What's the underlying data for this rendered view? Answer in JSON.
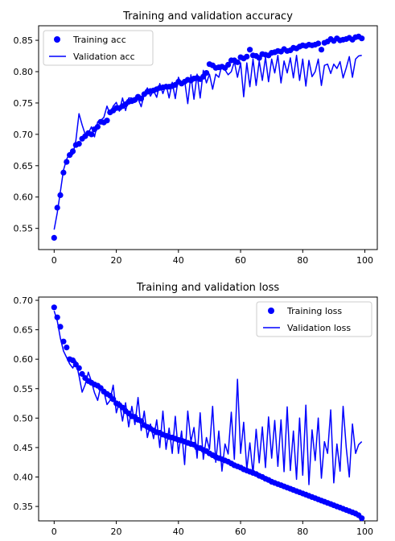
{
  "chart_data": [
    {
      "type": "line",
      "title": "Training and validation accuracy",
      "xlabel": "",
      "ylabel": "",
      "xlim": [
        -5,
        104
      ],
      "ylim": [
        0.5162,
        0.8732
      ],
      "xticks": [
        0,
        20,
        40,
        60,
        80,
        100
      ],
      "yticks": [
        0.55,
        0.6,
        0.65,
        0.7,
        0.75,
        0.8,
        0.85
      ],
      "tick_labels_x": [
        "0",
        "20",
        "40",
        "60",
        "80",
        "100"
      ],
      "tick_labels_y": [
        "0.55",
        "0.60",
        "0.65",
        "0.70",
        "0.75",
        "0.80",
        "0.85"
      ],
      "legend_position": "upper-left",
      "grid": false,
      "series": [
        {
          "name": "Training acc",
          "style": "points",
          "color": "#0000ff",
          "x": [
            0,
            1,
            2,
            3,
            4,
            5,
            6,
            7,
            8,
            9,
            10,
            11,
            12,
            13,
            14,
            15,
            16,
            17,
            18,
            19,
            20,
            21,
            22,
            23,
            24,
            25,
            26,
            27,
            28,
            29,
            30,
            31,
            32,
            33,
            34,
            35,
            36,
            37,
            38,
            39,
            40,
            41,
            42,
            43,
            44,
            45,
            46,
            47,
            48,
            49,
            50,
            51,
            52,
            53,
            54,
            55,
            56,
            57,
            58,
            59,
            60,
            61,
            62,
            63,
            64,
            65,
            66,
            67,
            68,
            69,
            70,
            71,
            72,
            73,
            74,
            75,
            76,
            77,
            78,
            79,
            80,
            81,
            82,
            83,
            84,
            85,
            86,
            87,
            88,
            89,
            90,
            91,
            92,
            93,
            94,
            95,
            96,
            97,
            98,
            99
          ],
          "y": [
            0.535,
            0.583,
            0.603,
            0.639,
            0.656,
            0.667,
            0.673,
            0.683,
            0.685,
            0.693,
            0.697,
            0.702,
            0.7,
            0.708,
            0.712,
            0.72,
            0.719,
            0.722,
            0.735,
            0.738,
            0.742,
            0.742,
            0.745,
            0.748,
            0.752,
            0.753,
            0.755,
            0.76,
            0.757,
            0.764,
            0.768,
            0.769,
            0.77,
            0.772,
            0.774,
            0.775,
            0.776,
            0.776,
            0.777,
            0.779,
            0.784,
            0.781,
            0.784,
            0.787,
            0.786,
            0.789,
            0.79,
            0.788,
            0.792,
            0.798,
            0.812,
            0.81,
            0.806,
            0.807,
            0.808,
            0.806,
            0.811,
            0.818,
            0.818,
            0.815,
            0.823,
            0.821,
            0.824,
            0.835,
            0.826,
            0.825,
            0.822,
            0.828,
            0.827,
            0.826,
            0.83,
            0.831,
            0.833,
            0.832,
            0.836,
            0.833,
            0.834,
            0.838,
            0.837,
            0.84,
            0.842,
            0.841,
            0.843,
            0.842,
            0.843,
            0.845,
            0.835,
            0.846,
            0.848,
            0.852,
            0.849,
            0.853,
            0.85,
            0.851,
            0.852,
            0.854,
            0.851,
            0.855,
            0.856,
            0.853
          ]
        },
        {
          "name": "Validation acc",
          "style": "line",
          "color": "#0000ff",
          "x": [
            0,
            1,
            2,
            3,
            4,
            5,
            6,
            7,
            8,
            9,
            10,
            11,
            12,
            13,
            14,
            15,
            16,
            17,
            18,
            19,
            20,
            21,
            22,
            23,
            24,
            25,
            26,
            27,
            28,
            29,
            30,
            31,
            32,
            33,
            34,
            35,
            36,
            37,
            38,
            39,
            40,
            41,
            42,
            43,
            44,
            45,
            46,
            47,
            48,
            49,
            50,
            51,
            52,
            53,
            54,
            55,
            56,
            57,
            58,
            59,
            60,
            61,
            62,
            63,
            64,
            65,
            66,
            67,
            68,
            69,
            70,
            71,
            72,
            73,
            74,
            75,
            76,
            77,
            78,
            79,
            80,
            81,
            82,
            83,
            84,
            85,
            86,
            87,
            88,
            89,
            90,
            91,
            92,
            93,
            94,
            95,
            96,
            97,
            98,
            99
          ],
          "y": [
            0.548,
            0.575,
            0.608,
            0.643,
            0.66,
            0.671,
            0.668,
            0.69,
            0.733,
            0.715,
            0.7,
            0.702,
            0.712,
            0.696,
            0.72,
            0.722,
            0.727,
            0.745,
            0.732,
            0.745,
            0.751,
            0.737,
            0.758,
            0.738,
            0.758,
            0.758,
            0.751,
            0.757,
            0.744,
            0.765,
            0.774,
            0.761,
            0.77,
            0.759,
            0.781,
            0.765,
            0.78,
            0.758,
            0.783,
            0.757,
            0.791,
            0.778,
            0.786,
            0.749,
            0.795,
            0.756,
            0.796,
            0.758,
            0.802,
            0.782,
            0.796,
            0.772,
            0.796,
            0.791,
            0.811,
            0.803,
            0.795,
            0.8,
            0.816,
            0.791,
            0.814,
            0.76,
            0.814,
            0.776,
            0.82,
            0.778,
            0.817,
            0.786,
            0.823,
            0.784,
            0.82,
            0.798,
            0.826,
            0.782,
            0.817,
            0.798,
            0.822,
            0.79,
            0.826,
            0.786,
            0.82,
            0.777,
            0.818,
            0.792,
            0.8,
            0.82,
            0.778,
            0.81,
            0.812,
            0.797,
            0.812,
            0.805,
            0.816,
            0.79,
            0.806,
            0.824,
            0.791,
            0.82,
            0.825,
            0.826
          ]
        }
      ]
    },
    {
      "type": "line",
      "title": "Training and validation loss",
      "xlabel": "",
      "ylabel": "",
      "xlim": [
        -5,
        104
      ],
      "ylim": [
        0.3255,
        0.7055
      ],
      "xticks": [
        0,
        20,
        40,
        60,
        80,
        100
      ],
      "yticks": [
        0.35,
        0.4,
        0.45,
        0.5,
        0.55,
        0.6,
        0.65,
        0.7
      ],
      "tick_labels_x": [
        "0",
        "20",
        "40",
        "60",
        "80",
        "100"
      ],
      "tick_labels_y": [
        "0.35",
        "0.40",
        "0.45",
        "0.50",
        "0.55",
        "0.60",
        "0.65",
        "0.70"
      ],
      "legend_position": "upper-right",
      "grid": false,
      "series": [
        {
          "name": "Training loss",
          "style": "points",
          "color": "#0000ff",
          "x": [
            0,
            1,
            2,
            3,
            4,
            5,
            6,
            7,
            8,
            9,
            10,
            11,
            12,
            13,
            14,
            15,
            16,
            17,
            18,
            19,
            20,
            21,
            22,
            23,
            24,
            25,
            26,
            27,
            28,
            29,
            30,
            31,
            32,
            33,
            34,
            35,
            36,
            37,
            38,
            39,
            40,
            41,
            42,
            43,
            44,
            45,
            46,
            47,
            48,
            49,
            50,
            51,
            52,
            53,
            54,
            55,
            56,
            57,
            58,
            59,
            60,
            61,
            62,
            63,
            64,
            65,
            66,
            67,
            68,
            69,
            70,
            71,
            72,
            73,
            74,
            75,
            76,
            77,
            78,
            79,
            80,
            81,
            82,
            83,
            84,
            85,
            86,
            87,
            88,
            89,
            90,
            91,
            92,
            93,
            94,
            95,
            96,
            97,
            98,
            99
          ],
          "y": [
            0.688,
            0.671,
            0.655,
            0.63,
            0.62,
            0.6,
            0.598,
            0.591,
            0.585,
            0.575,
            0.568,
            0.563,
            0.56,
            0.557,
            0.555,
            0.551,
            0.545,
            0.541,
            0.538,
            0.532,
            0.525,
            0.522,
            0.518,
            0.512,
            0.508,
            0.503,
            0.502,
            0.497,
            0.495,
            0.488,
            0.485,
            0.482,
            0.479,
            0.476,
            0.475,
            0.472,
            0.47,
            0.468,
            0.467,
            0.465,
            0.463,
            0.462,
            0.46,
            0.458,
            0.456,
            0.455,
            0.45,
            0.449,
            0.446,
            0.444,
            0.44,
            0.437,
            0.434,
            0.432,
            0.43,
            0.428,
            0.426,
            0.423,
            0.42,
            0.418,
            0.416,
            0.413,
            0.411,
            0.409,
            0.407,
            0.405,
            0.402,
            0.4,
            0.397,
            0.395,
            0.392,
            0.39,
            0.388,
            0.386,
            0.384,
            0.382,
            0.38,
            0.378,
            0.376,
            0.374,
            0.372,
            0.37,
            0.368,
            0.366,
            0.364,
            0.362,
            0.36,
            0.358,
            0.356,
            0.354,
            0.352,
            0.35,
            0.348,
            0.346,
            0.344,
            0.342,
            0.34,
            0.338,
            0.335,
            0.33
          ]
        },
        {
          "name": "Validation loss",
          "style": "line",
          "color": "#0000ff",
          "x": [
            0,
            1,
            2,
            3,
            4,
            5,
            6,
            7,
            8,
            9,
            10,
            11,
            12,
            13,
            14,
            15,
            16,
            17,
            18,
            19,
            20,
            21,
            22,
            23,
            24,
            25,
            26,
            27,
            28,
            29,
            30,
            31,
            32,
            33,
            34,
            35,
            36,
            37,
            38,
            39,
            40,
            41,
            42,
            43,
            44,
            45,
            46,
            47,
            48,
            49,
            50,
            51,
            52,
            53,
            54,
            55,
            56,
            57,
            58,
            59,
            60,
            61,
            62,
            63,
            64,
            65,
            66,
            67,
            68,
            69,
            70,
            71,
            72,
            73,
            74,
            75,
            76,
            77,
            78,
            79,
            80,
            81,
            82,
            83,
            84,
            85,
            86,
            87,
            88,
            89,
            90,
            91,
            92,
            93,
            94,
            95,
            96,
            97,
            98,
            99
          ],
          "y": [
            0.682,
            0.665,
            0.636,
            0.614,
            0.603,
            0.592,
            0.585,
            0.597,
            0.572,
            0.544,
            0.557,
            0.578,
            0.562,
            0.543,
            0.53,
            0.554,
            0.545,
            0.523,
            0.53,
            0.556,
            0.509,
            0.528,
            0.495,
            0.526,
            0.485,
            0.52,
            0.489,
            0.535,
            0.479,
            0.512,
            0.467,
            0.49,
            0.465,
            0.497,
            0.45,
            0.512,
            0.447,
            0.483,
            0.44,
            0.503,
            0.44,
            0.478,
            0.421,
            0.512,
            0.46,
            0.484,
            0.432,
            0.509,
            0.43,
            0.467,
            0.447,
            0.52,
            0.425,
            0.478,
            0.41,
            0.456,
            0.439,
            0.51,
            0.43,
            0.566,
            0.44,
            0.493,
            0.413,
            0.458,
            0.405,
            0.481,
            0.424,
            0.485,
            0.416,
            0.502,
            0.432,
            0.496,
            0.418,
            0.497,
            0.409,
            0.519,
            0.411,
            0.478,
            0.396,
            0.5,
            0.403,
            0.522,
            0.387,
            0.48,
            0.428,
            0.5,
            0.398,
            0.46,
            0.44,
            0.514,
            0.39,
            0.456,
            0.41,
            0.52,
            0.45,
            0.4,
            0.49,
            0.44,
            0.455,
            0.46
          ]
        }
      ]
    }
  ]
}
